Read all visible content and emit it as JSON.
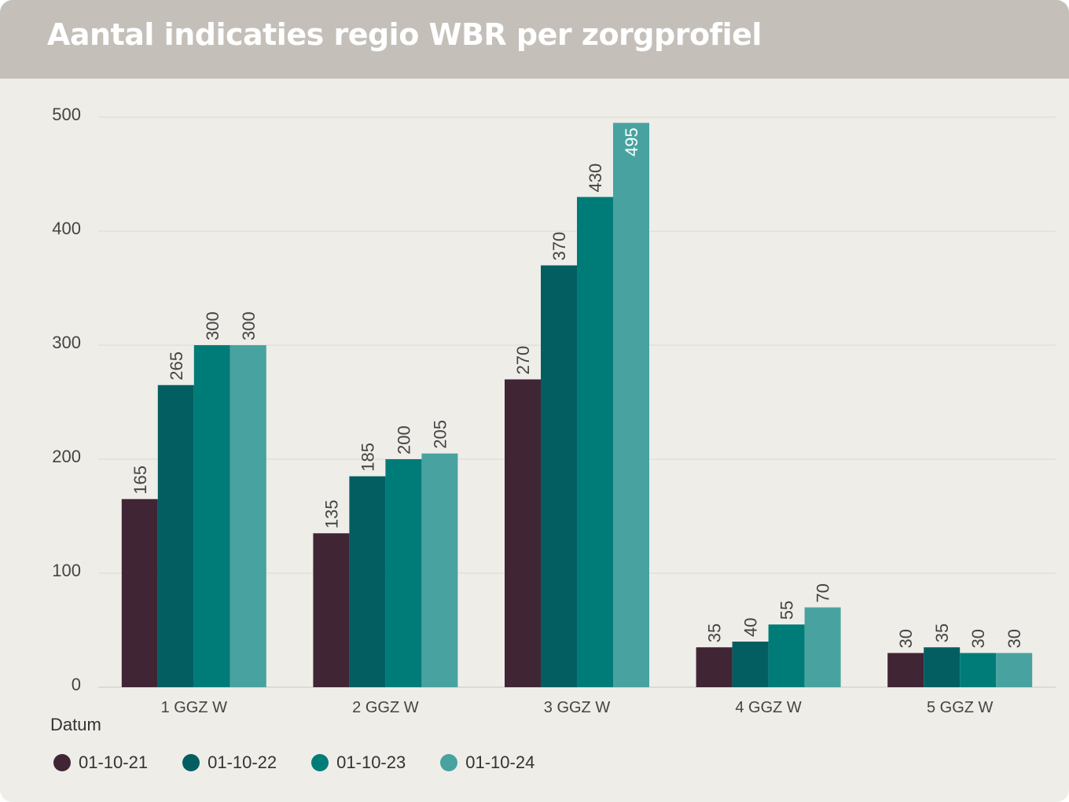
{
  "header": {
    "title": "Aantal indicaties regio WBR per zorgprofiel"
  },
  "chart_data": {
    "type": "bar",
    "title": "Aantal indicaties regio WBR per zorgprofiel",
    "xlabel": "",
    "ylabel": "",
    "ylim": [
      0,
      500
    ],
    "yticks": [
      0,
      100,
      200,
      300,
      400,
      500
    ],
    "grid": true,
    "categories": [
      "1 GGZ W",
      "2 GGZ W",
      "3 GGZ W",
      "4 GGZ W",
      "5 GGZ W"
    ],
    "legend_title": "Datum",
    "legend_position": "bottom-left",
    "series": [
      {
        "name": "01-10-21",
        "color": "#402535",
        "values": [
          165,
          135,
          270,
          35,
          30
        ]
      },
      {
        "name": "01-10-22",
        "color": "#035e62",
        "values": [
          265,
          185,
          370,
          40,
          35
        ]
      },
      {
        "name": "01-10-23",
        "color": "#007c78",
        "values": [
          300,
          200,
          430,
          55,
          30
        ]
      },
      {
        "name": "01-10-24",
        "color": "#48a3a0",
        "values": [
          300,
          205,
          495,
          70,
          30
        ]
      }
    ]
  }
}
